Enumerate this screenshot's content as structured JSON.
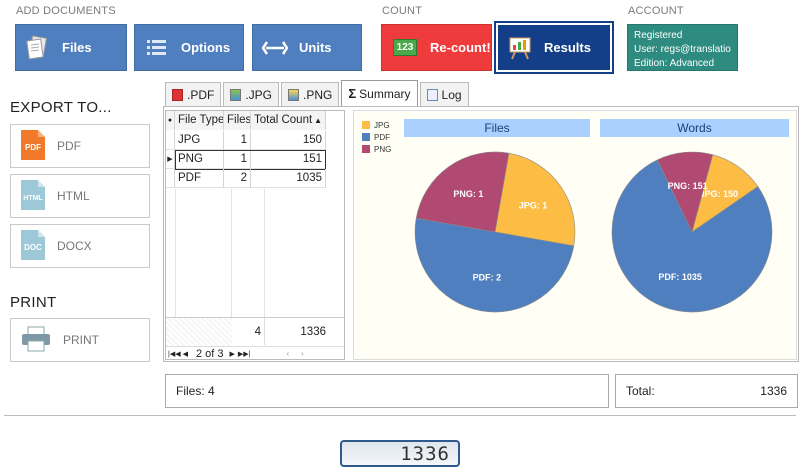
{
  "sections": {
    "add_documents": "ADD DOCUMENTS",
    "count": "COUNT",
    "account": "ACCOUNT"
  },
  "toolbar": {
    "files": "Files",
    "options": "Options",
    "units": "Units",
    "recount": "Re-count!",
    "results": "Results",
    "recount_icon_text": "123"
  },
  "account": {
    "status": "Registered",
    "user": "User: regs@translatio...",
    "edition": "Edition: Advanced"
  },
  "export": {
    "heading": "EXPORT TO...",
    "pdf": "PDF",
    "html": "HTML",
    "docx": "DOCX",
    "pdf_icon": "PDF",
    "html_icon": "HTML",
    "docx_icon": "DOC"
  },
  "print": {
    "heading": "PRINT",
    "button": "PRINT"
  },
  "tabs": [
    ".PDF",
    ".JPG",
    ".PNG",
    "Summary",
    "Log"
  ],
  "summary_symbol": "Σ",
  "grid": {
    "headers": [
      "File Type",
      "Files",
      "Total Count"
    ],
    "rows": [
      {
        "type": "JPG",
        "files": "1",
        "count": "150"
      },
      {
        "type": "PNG",
        "files": "1",
        "count": "151"
      },
      {
        "type": "PDF",
        "files": "2",
        "count": "1035"
      }
    ],
    "totals": {
      "files": "4",
      "count": "1336"
    },
    "pager": "2 of 3"
  },
  "chart_data": [
    {
      "type": "pie",
      "title": "Files",
      "categories": [
        "JPG",
        "PDF",
        "PNG"
      ],
      "values": [
        1,
        2,
        1
      ],
      "slice_labels": [
        "JPG: 1",
        "PDF: 2",
        "PNG: 1"
      ],
      "legend": "top-left",
      "colors": [
        "#fdbd45",
        "#4f7fbe",
        "#b04a72"
      ]
    },
    {
      "type": "pie",
      "title": "Words",
      "categories": [
        "JPG",
        "PDF",
        "PNG"
      ],
      "values": [
        150,
        1035,
        151
      ],
      "slice_labels": [
        "JPG: 150",
        "PDF: 1035",
        "PNG: 151"
      ],
      "legend": "top-left",
      "colors": [
        "#fdbd45",
        "#4f7fbe",
        "#b04a72"
      ]
    }
  ],
  "legend_items": [
    "JPG",
    "PDF",
    "PNG"
  ],
  "status": {
    "files": "Files: 4",
    "total_label": "Total:",
    "total_value": "1336"
  },
  "counter": "1336",
  "colors": {
    "toolbar_blue": "#4f7fbe",
    "recount_red": "#ef3b3b",
    "results_navy": "#143f88",
    "account_teal": "#2e8b7f",
    "chart_header": "#a9d0ff"
  }
}
